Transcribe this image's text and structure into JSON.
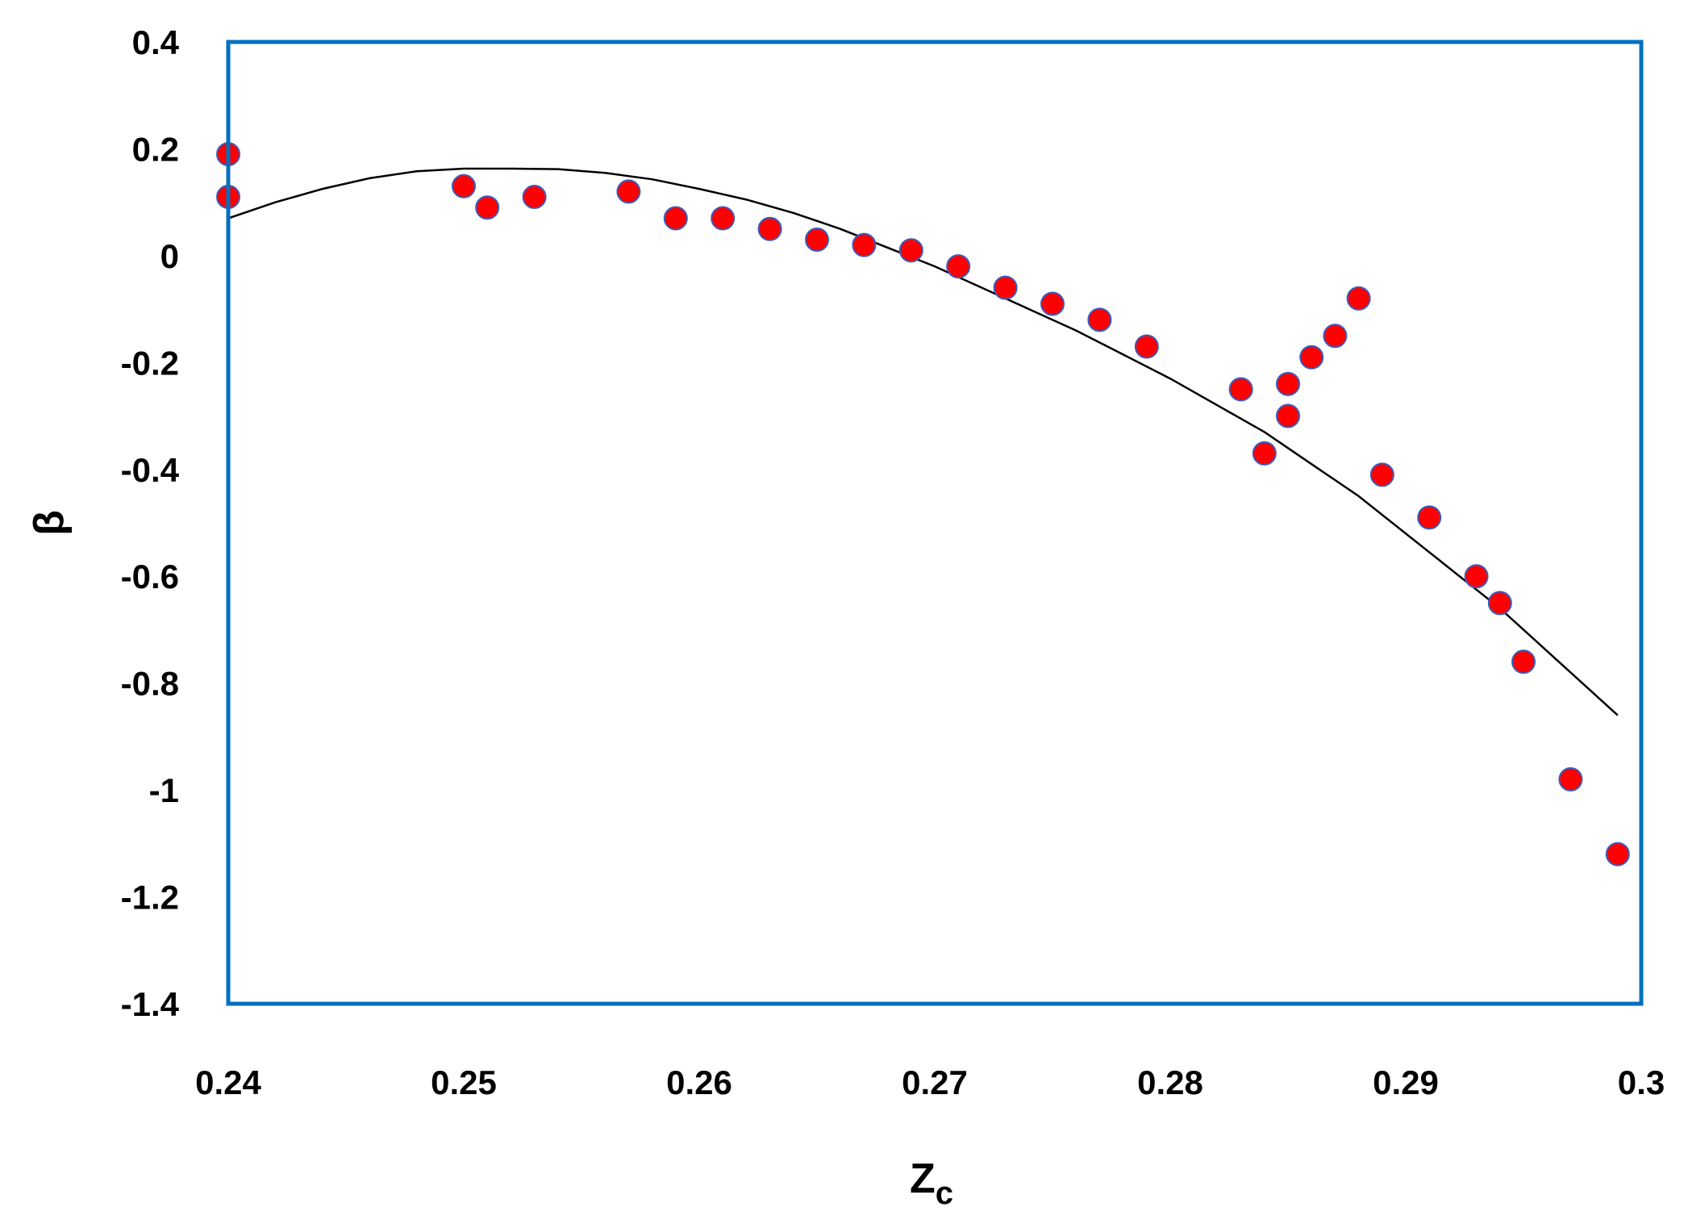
{
  "chart_data": {
    "type": "scatter",
    "title": "",
    "xlabel": "Z",
    "xlabel_sub": "c",
    "ylabel": "β",
    "xlim": [
      0.24,
      0.3
    ],
    "ylim": [
      -1.4,
      0.4
    ],
    "x_ticks": [
      "0.24",
      "0.25",
      "0.26",
      "0.27",
      "0.28",
      "0.29",
      "0.3"
    ],
    "y_ticks": [
      "0.4",
      "0.2",
      "0",
      "-0.2",
      "-0.4",
      "-0.6",
      "-0.8",
      "-1",
      "-1.2",
      "-1.4"
    ],
    "grid": false,
    "legend": "none",
    "colors": {
      "points": "#ff0000",
      "point_edge": "#3b5bbd",
      "curve": "#000000",
      "frame": "#0070c0"
    },
    "series": [
      {
        "kind": "points",
        "x": [
          0.24,
          0.24,
          0.25,
          0.251,
          0.253,
          0.257,
          0.259,
          0.261,
          0.263,
          0.265,
          0.267,
          0.269,
          0.271,
          0.273,
          0.275,
          0.277,
          0.279,
          0.283,
          0.284,
          0.285,
          0.285,
          0.286,
          0.287,
          0.288,
          0.289,
          0.291,
          0.293,
          0.294,
          0.295,
          0.297,
          0.299
        ],
        "y": [
          0.19,
          0.11,
          0.13,
          0.09,
          0.11,
          0.12,
          0.07,
          0.07,
          0.05,
          0.03,
          0.02,
          0.01,
          -0.02,
          -0.06,
          -0.09,
          -0.12,
          -0.17,
          -0.25,
          -0.37,
          -0.24,
          -0.3,
          -0.19,
          -0.15,
          -0.08,
          -0.41,
          -0.49,
          -0.6,
          -0.65,
          -0.76,
          -0.98,
          -1.12
        ]
      },
      {
        "kind": "curve",
        "x": [
          0.24,
          0.242,
          0.244,
          0.246,
          0.248,
          0.25,
          0.252,
          0.254,
          0.256,
          0.258,
          0.26,
          0.262,
          0.264,
          0.266,
          0.268,
          0.27,
          0.272,
          0.274,
          0.276,
          0.278,
          0.28,
          0.282,
          0.284,
          0.286,
          0.288,
          0.29,
          0.292,
          0.294,
          0.296,
          0.298,
          0.299
        ],
        "y": [
          0.07,
          0.1,
          0.125,
          0.145,
          0.158,
          0.163,
          0.163,
          0.162,
          0.155,
          0.143,
          0.125,
          0.105,
          0.08,
          0.05,
          0.015,
          -0.02,
          -0.06,
          -0.1,
          -0.14,
          -0.185,
          -0.23,
          -0.28,
          -0.33,
          -0.39,
          -0.45,
          -0.52,
          -0.59,
          -0.66,
          -0.74,
          -0.82,
          -0.86
        ]
      }
    ]
  }
}
